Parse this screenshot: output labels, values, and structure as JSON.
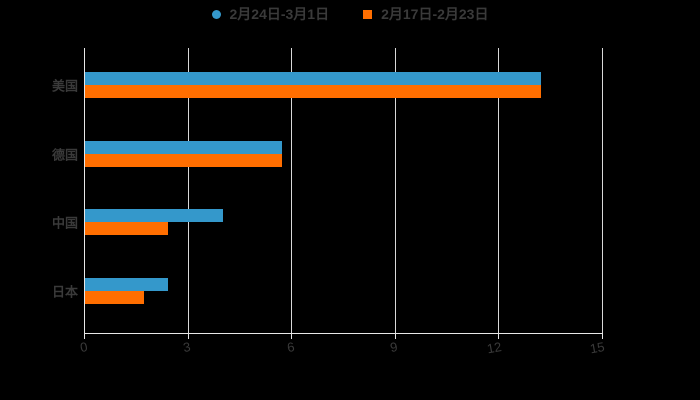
{
  "chart": {
    "background": "#000000",
    "text_color": "#3a3a3a",
    "grid_color": "#d9d9d9",
    "axis_color": "#e8e8e8"
  },
  "legend": {
    "items": [
      {
        "label": "2月24日-3月1日",
        "marker": "circle-icon",
        "color": "#3498cb"
      },
      {
        "label": "2月17日-2月23日",
        "marker": "square-icon",
        "color": "#ff6e00"
      }
    ]
  },
  "chart_data": {
    "type": "bar",
    "orientation": "horizontal",
    "title": "",
    "xlabel": "",
    "ylabel": "",
    "categories": [
      "美国",
      "德国",
      "中国",
      "日本"
    ],
    "series": [
      {
        "name": "2月24日-3月1日",
        "color": "#3498cb",
        "values": [
          13.2,
          5.7,
          4.0,
          2.4
        ]
      },
      {
        "name": "2月17日-2月23日",
        "color": "#ff6e00",
        "values": [
          13.2,
          5.7,
          2.4,
          1.7
        ]
      }
    ],
    "xticks": [
      0,
      3,
      6,
      9,
      12,
      15
    ],
    "xlim": [
      0,
      15
    ],
    "grid": true,
    "legend_position": "top"
  }
}
